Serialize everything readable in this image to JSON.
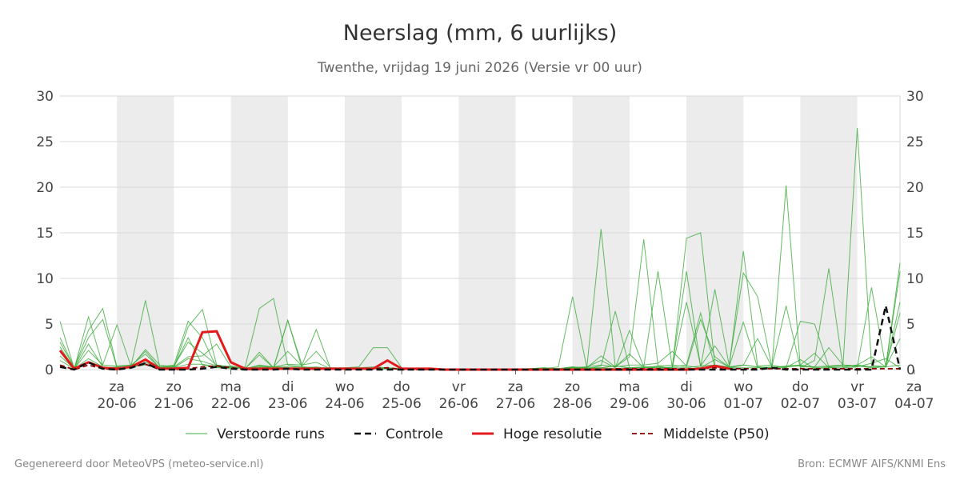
{
  "colors": {
    "ensemble": "#3cab3c",
    "ensemble_dark": "#1e8c1e",
    "control": "#111111",
    "hires": "#e31a1c",
    "median": "#8b0000",
    "shade": "#ececec",
    "grid": "#d9d9d9"
  },
  "footer": {
    "left": "Gegenereerd door MeteoVPS (meteo-service.nl)",
    "right": "Bron: ECMWF AIFS/KNMI Ens"
  },
  "chart_data": {
    "type": "line",
    "title": "Neerslag (mm, 6 uurlijks)",
    "subtitle": "Twenthe, vrijdag 19 juni 2026 (Versie vr 00 uur)",
    "xlabel": "",
    "ylabel": "",
    "ylim": [
      0,
      30
    ],
    "yticks": [
      0,
      5,
      10,
      15,
      20,
      25,
      30
    ],
    "x_step_hours": 6,
    "x_range_index": [
      0,
      59
    ],
    "x_ticks": [
      {
        "day": "za",
        "date": "20-06"
      },
      {
        "day": "zo",
        "date": "21-06"
      },
      {
        "day": "ma",
        "date": "22-06"
      },
      {
        "day": "di",
        "date": "23-06"
      },
      {
        "day": "wo",
        "date": "24-06"
      },
      {
        "day": "do",
        "date": "25-06"
      },
      {
        "day": "vr",
        "date": "26-06"
      },
      {
        "day": "za",
        "date": "27-06"
      },
      {
        "day": "zo",
        "date": "28-06"
      },
      {
        "day": "ma",
        "date": "29-06"
      },
      {
        "day": "di",
        "date": "30-06"
      },
      {
        "day": "wo",
        "date": "01-07"
      },
      {
        "day": "do",
        "date": "02-07"
      },
      {
        "day": "vr",
        "date": "03-07"
      },
      {
        "day": "za",
        "date": "04-07"
      }
    ],
    "grid": true,
    "legend_position": "bottom",
    "legend": [
      {
        "label": "Verstoorde runs",
        "style": "thin-green"
      },
      {
        "label": "Controle",
        "style": "black-dashed"
      },
      {
        "label": "Hoge resolutie",
        "style": "red-thick"
      },
      {
        "label": "Middelste (P50)",
        "style": "darkred-dashed"
      }
    ],
    "series": [
      {
        "name": "Hoge resolutie",
        "role": "hires",
        "values": [
          2.1,
          0.1,
          0.8,
          0.2,
          0.1,
          0.3,
          1.1,
          0.1,
          0.1,
          0.2,
          4.1,
          4.2,
          0.8,
          0.1,
          0.1,
          0.1,
          0.1,
          0.1,
          0.1,
          0.1,
          0.1,
          0.1,
          0.1,
          1.0,
          0.1,
          0.1,
          0.1,
          0.0,
          0.0,
          0.0,
          0.0,
          0.0,
          0.0,
          0.0,
          0.0,
          0.0,
          0.0,
          0.0,
          0.0,
          0.0,
          0.0,
          0.0,
          0.0,
          0.0,
          0.0,
          0.1,
          0.4,
          0.1
        ]
      },
      {
        "name": "Controle",
        "role": "control",
        "values": [
          0.3,
          0.0,
          0.8,
          0.1,
          0.0,
          0.2,
          0.7,
          0.0,
          0.0,
          0.0,
          0.1,
          0.3,
          0.1,
          0.0,
          0.0,
          0.0,
          0.1,
          0.0,
          0.0,
          0.0,
          0.0,
          0.0,
          0.0,
          0.0,
          0.0,
          0.0,
          0.0,
          0.0,
          0.0,
          0.0,
          0.0,
          0.0,
          0.0,
          0.0,
          0.0,
          0.0,
          0.0,
          0.0,
          0.0,
          0.0,
          0.0,
          0.0,
          0.0,
          0.0,
          0.0,
          0.0,
          0.0,
          0.0,
          0.0,
          0.0,
          0.2,
          0.0,
          0.0,
          0.0,
          0.0,
          0.0,
          0.0,
          0.0,
          7.0,
          0.0
        ]
      },
      {
        "name": "Middelste (P50)",
        "role": "median",
        "values": [
          0.5,
          0.0,
          0.5,
          0.1,
          0.0,
          0.3,
          0.6,
          0.0,
          0.0,
          0.1,
          0.3,
          0.4,
          0.2,
          0.0,
          0.0,
          0.1,
          0.1,
          0.1,
          0.1,
          0.1,
          0.1,
          0.1,
          0.1,
          0.2,
          0.0,
          0.0,
          0.0,
          0.0,
          0.0,
          0.0,
          0.0,
          0.0,
          0.0,
          0.0,
          0.0,
          0.0,
          0.0,
          0.0,
          0.0,
          0.1,
          0.1,
          0.1,
          0.1,
          0.1,
          0.1,
          0.1,
          0.2,
          0.1,
          0.1,
          0.1,
          0.1,
          0.1,
          0.1,
          0.1,
          0.1,
          0.1,
          0.1,
          0.1,
          0.1,
          0.1
        ]
      },
      {
        "role": "member",
        "values": [
          5.3,
          0.1,
          5.8,
          0.5,
          4.9,
          0.3,
          0.5,
          0.3,
          0.5,
          5.3,
          3.5,
          0.2,
          0.1,
          0.3,
          6.7,
          7.8,
          0.5,
          0.3,
          0.2,
          0.2,
          0.2,
          0.3,
          2.4,
          2.4,
          0.2,
          0.0,
          0.0,
          0.0,
          0.0,
          0.0,
          0.0,
          0.0,
          0.1,
          0.1,
          0.1,
          0.3,
          8.0,
          0.2,
          1.5,
          0.3,
          0.5,
          0.5,
          0.7,
          2.0,
          0.4,
          0.2,
          1.1,
          0.3,
          0.5,
          0.3,
          0.2,
          0.4,
          0.5,
          0.2,
          0.3,
          0.5,
          0.3,
          0.7,
          1.2,
          0.2
        ]
      },
      {
        "role": "member",
        "values": [
          3.5,
          0.2,
          4.3,
          6.7,
          0.3,
          0.5,
          7.6,
          0.3,
          0.2,
          4.7,
          6.6,
          0.5,
          0.3,
          0.1,
          1.6,
          0.2,
          5.4,
          0.2,
          0.3,
          0.1,
          0.1,
          0.1,
          0.2,
          0.1,
          0.1,
          0.0,
          0.0,
          0.0,
          0.0,
          0.0,
          0.0,
          0.0,
          0.0,
          0.1,
          0.2,
          0.1,
          0.3,
          0.2,
          15.4,
          0.3,
          1.4,
          14.3,
          0.4,
          0.1,
          14.4,
          15.0,
          0.5,
          0.3,
          13.0,
          0.4,
          0.5,
          0.2,
          1.1,
          0.1,
          0.2,
          0.3,
          0.5,
          1.4,
          0.3,
          10.8
        ]
      },
      {
        "role": "member",
        "values": [
          3.0,
          0.2,
          3.5,
          5.5,
          0.2,
          0.3,
          2.2,
          0.5,
          0.3,
          3.5,
          0.5,
          0.2,
          0.4,
          0.1,
          0.5,
          0.3,
          0.2,
          0.2,
          0.2,
          0.1,
          0.2,
          0.2,
          0.3,
          0.2,
          0.1,
          0.0,
          0.0,
          0.0,
          0.0,
          0.0,
          0.0,
          0.0,
          0.0,
          0.1,
          0.2,
          0.1,
          0.3,
          0.1,
          0.4,
          6.4,
          0.2,
          0.3,
          10.8,
          0.3,
          10.8,
          0.3,
          8.8,
          0.5,
          10.6,
          8.0,
          0.3,
          7.0,
          0.2,
          1.0,
          11.1,
          0.2,
          0.3,
          9.0,
          0.3,
          11.7
        ]
      },
      {
        "role": "member",
        "values": [
          2.5,
          0.1,
          2.8,
          0.3,
          0.2,
          0.4,
          2.0,
          0.2,
          0.4,
          3.0,
          1.8,
          0.5,
          0.3,
          0.1,
          0.3,
          0.3,
          0.3,
          0.3,
          0.2,
          0.1,
          0.1,
          0.1,
          0.2,
          0.2,
          0.1,
          0.0,
          0.0,
          0.0,
          0.0,
          0.0,
          0.0,
          0.0,
          0.0,
          0.1,
          0.1,
          0.1,
          0.2,
          0.3,
          1.0,
          0.2,
          4.3,
          0.3,
          0.3,
          0.2,
          7.4,
          0.4,
          0.5,
          0.2,
          0.5,
          0.3,
          0.2,
          20.2,
          0.3,
          0.3,
          0.4,
          0.5,
          26.5,
          0.5,
          0.3,
          0.5
        ]
      },
      {
        "role": "member",
        "values": [
          2.0,
          0.1,
          2.1,
          0.5,
          0.4,
          0.5,
          1.7,
          0.2,
          0.3,
          1.4,
          1.5,
          2.8,
          0.3,
          0.1,
          1.9,
          0.2,
          5.4,
          0.5,
          4.4,
          0.1,
          0.1,
          0.1,
          0.1,
          0.1,
          0.1,
          0.0,
          0.0,
          0.0,
          0.0,
          0.0,
          0.0,
          0.0,
          0.0,
          0.1,
          0.1,
          0.1,
          0.2,
          0.3,
          0.5,
          0.3,
          1.7,
          0.2,
          0.4,
          0.5,
          0.3,
          5.5,
          1.4,
          0.3,
          5.2,
          0.2,
          0.3,
          0.2,
          5.3,
          5.0,
          0.3,
          0.5,
          0.4,
          0.2,
          0.3,
          6.2
        ]
      },
      {
        "role": "member",
        "values": [
          1.5,
          0.1,
          1.2,
          0.3,
          0.2,
          0.3,
          1.1,
          0.3,
          0.2,
          1.2,
          0.9,
          0.4,
          0.2,
          0.1,
          0.2,
          0.3,
          0.6,
          0.5,
          0.8,
          0.1,
          0.1,
          0.1,
          0.1,
          0.1,
          0.1,
          0.0,
          0.0,
          0.0,
          0.0,
          0.0,
          0.0,
          0.0,
          0.0,
          0.1,
          0.1,
          0.1,
          0.2,
          0.1,
          0.2,
          0.4,
          0.2,
          0.3,
          0.2,
          0.2,
          0.2,
          0.4,
          2.6,
          0.3,
          0.5,
          3.4,
          0.3,
          0.3,
          0.4,
          0.3,
          2.4,
          0.5,
          0.4,
          0.3,
          0.3,
          7.4
        ]
      },
      {
        "role": "member",
        "values": [
          1.0,
          0.1,
          0.8,
          0.2,
          0.3,
          0.2,
          0.8,
          0.2,
          0.2,
          0.6,
          0.6,
          0.3,
          0.3,
          0.1,
          0.4,
          0.3,
          2.0,
          0.4,
          2.0,
          0.2,
          0.1,
          0.1,
          0.1,
          0.1,
          0.1,
          0.0,
          0.0,
          0.0,
          0.0,
          0.0,
          0.0,
          0.0,
          0.0,
          0.1,
          0.1,
          0.1,
          0.1,
          0.2,
          0.2,
          0.1,
          0.2,
          0.2,
          0.2,
          0.3,
          0.5,
          6.2,
          0.3,
          0.2,
          0.2,
          0.2,
          0.2,
          0.3,
          0.5,
          1.8,
          0.2,
          0.3,
          0.5,
          0.3,
          0.3,
          3.4
        ]
      }
    ]
  }
}
